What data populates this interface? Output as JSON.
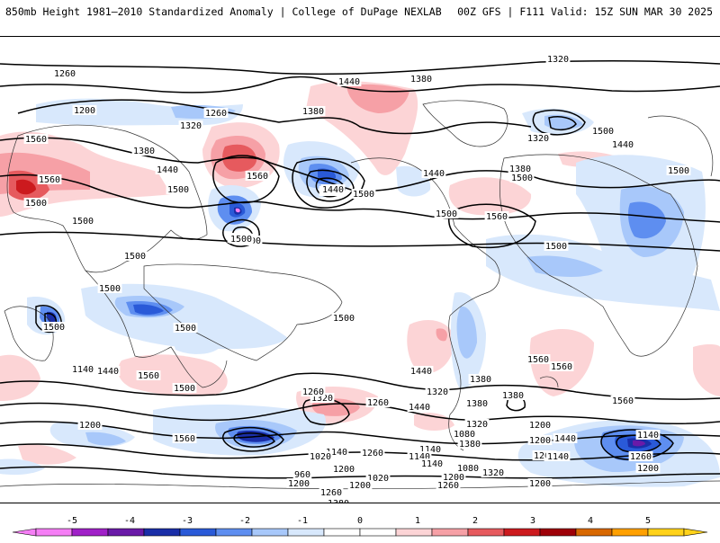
{
  "header": {
    "title": "850mb Height 1981–2010 Standardized Anomaly | College of DuPage NEXLAB",
    "run_info": "00Z GFS | F111 Valid: 15Z SUN MAR 30 2025"
  },
  "map": {
    "contour_labels": [
      {
        "text": "1320"
      },
      {
        "text": "1260"
      },
      {
        "text": "1440"
      },
      {
        "text": "1380"
      },
      {
        "text": "1200"
      },
      {
        "text": "1260"
      },
      {
        "text": "1380"
      },
      {
        "text": "1320"
      },
      {
        "text": "1320"
      },
      {
        "text": "1560"
      },
      {
        "text": "1380"
      },
      {
        "text": "1440"
      },
      {
        "text": "1560"
      },
      {
        "text": "1500"
      },
      {
        "text": "1560"
      },
      {
        "text": "1380"
      },
      {
        "text": "1440"
      },
      {
        "text": "1500"
      },
      {
        "text": "1440"
      },
      {
        "text": "1380"
      },
      {
        "text": "1500"
      },
      {
        "text": "1440"
      },
      {
        "text": "1500"
      },
      {
        "text": "1500"
      },
      {
        "text": "1500"
      },
      {
        "text": "1560"
      },
      {
        "text": "1500"
      },
      {
        "text": "1500"
      },
      {
        "text": "1500"
      },
      {
        "text": "1500"
      },
      {
        "text": "1500"
      },
      {
        "text": "1500"
      },
      {
        "text": "1500"
      },
      {
        "text": "1500"
      },
      {
        "text": "1500"
      },
      {
        "text": "1560"
      },
      {
        "text": "1380"
      },
      {
        "text": "1440"
      },
      {
        "text": "1560"
      },
      {
        "text": "1560"
      },
      {
        "text": "1500"
      },
      {
        "text": "1380"
      },
      {
        "text": "1260"
      },
      {
        "text": "1320"
      },
      {
        "text": "1440"
      },
      {
        "text": "1380"
      },
      {
        "text": "1320"
      },
      {
        "text": "1260"
      },
      {
        "text": "1200"
      },
      {
        "text": "1140"
      },
      {
        "text": "1140"
      },
      {
        "text": "1320"
      },
      {
        "text": "1200"
      },
      {
        "text": "1080"
      },
      {
        "text": "1260"
      },
      {
        "text": "1140"
      },
      {
        "text": "960"
      },
      {
        "text": "1020"
      },
      {
        "text": "1200"
      },
      {
        "text": "1140"
      },
      {
        "text": "1200"
      },
      {
        "text": "1140"
      },
      {
        "text": "1080"
      },
      {
        "text": "1020"
      },
      {
        "text": "1200"
      },
      {
        "text": "1260"
      },
      {
        "text": "1200"
      },
      {
        "text": "1260"
      },
      {
        "text": "1380"
      },
      {
        "text": "1320"
      },
      {
        "text": "1440"
      },
      {
        "text": "1200"
      },
      {
        "text": "1320"
      },
      {
        "text": "1260"
      },
      {
        "text": "1140"
      },
      {
        "text": "1200"
      },
      {
        "text": "1200"
      },
      {
        "text": "1380"
      },
      {
        "text": "1500"
      },
      {
        "text": "1560"
      },
      {
        "text": "1440"
      },
      {
        "text": "1500"
      },
      {
        "text": "1140"
      },
      {
        "text": "1200"
      },
      {
        "text": "1560"
      }
    ]
  },
  "colorbar": {
    "ticks": [
      "-5",
      "-4",
      "-3",
      "-2",
      "-1",
      "0",
      "1",
      "2",
      "3",
      "4",
      "5"
    ],
    "colors": [
      "#f57ef5",
      "#a020c8",
      "#6a1aa8",
      "#1a2ea8",
      "#2a5ad8",
      "#5e8ef0",
      "#a8c8fa",
      "#d8e8fc",
      "#ffffff",
      "#ffffff",
      "#fcd4d6",
      "#f6a0a6",
      "#e65a5e",
      "#cc1a1e",
      "#9e0008",
      "#d86800",
      "#ffa000",
      "#ffd21a"
    ]
  }
}
